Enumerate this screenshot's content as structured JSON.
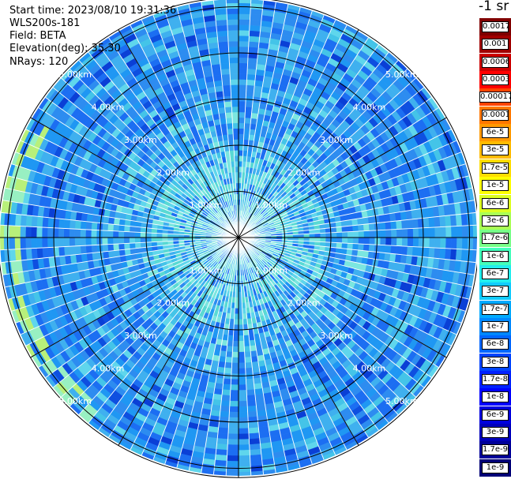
{
  "header": {
    "start_time": "Start time: 2023/08/10 19:31:36",
    "device": "WLS200s-181",
    "field": "Field: BETA",
    "elevation": "Elevation(deg): 35.30",
    "nrays": "NRays: 120"
  },
  "chart_data": {
    "type": "heatmap",
    "projection": "polar-ppi",
    "field": "BETA",
    "elevation_deg": 35.3,
    "n_rays": 120,
    "range_rings_km": [
      1.0,
      2.0,
      3.0,
      4.0,
      5.0
    ],
    "ring_labels": [
      "1.00km",
      "2.00km",
      "3.00km",
      "4.00km",
      "5.00km"
    ],
    "max_range_km": 5.2,
    "spoke_count": 12,
    "colorbar": {
      "title": "-1 sr",
      "labels": [
        "0.0017",
        "0.001",
        "0.0006",
        "0.0003",
        "0.00017",
        "0.0001",
        "6e-5",
        "3e-5",
        "1.7e-5",
        "1e-5",
        "6e-6",
        "3e-6",
        "1.7e-6",
        "1e-6",
        "6e-7",
        "3e-7",
        "1.7e-7",
        "1e-7",
        "6e-8",
        "3e-8",
        "1.7e-8",
        "1e-8",
        "6e-9",
        "3e-9",
        "1.7e-9",
        "1e-9"
      ],
      "colors": [
        "#800000",
        "#a00000",
        "#cc0000",
        "#ff0000",
        "#ff4400",
        "#ff7700",
        "#ff9900",
        "#ffbb00",
        "#ffdd00",
        "#ffff00",
        "#ddff22",
        "#aaff55",
        "#77ff88",
        "#44ffbb",
        "#22eeee",
        "#11ccff",
        "#00aaff",
        "#0088ff",
        "#0066ff",
        "#0044ff",
        "#0022ff",
        "#0000ff",
        "#0000dd",
        "#0000bb",
        "#000099",
        "#000077"
      ]
    },
    "palette": [
      "#1c6ef2",
      "#2d8cf0",
      "#1f97f3",
      "#3fb0ef",
      "#44c4e8",
      "#5fd6ec",
      "#7be6e0",
      "#59d9d4",
      "#98f0c2",
      "#b8f07a",
      "#0e4fe0",
      "#0a3fd6"
    ]
  }
}
